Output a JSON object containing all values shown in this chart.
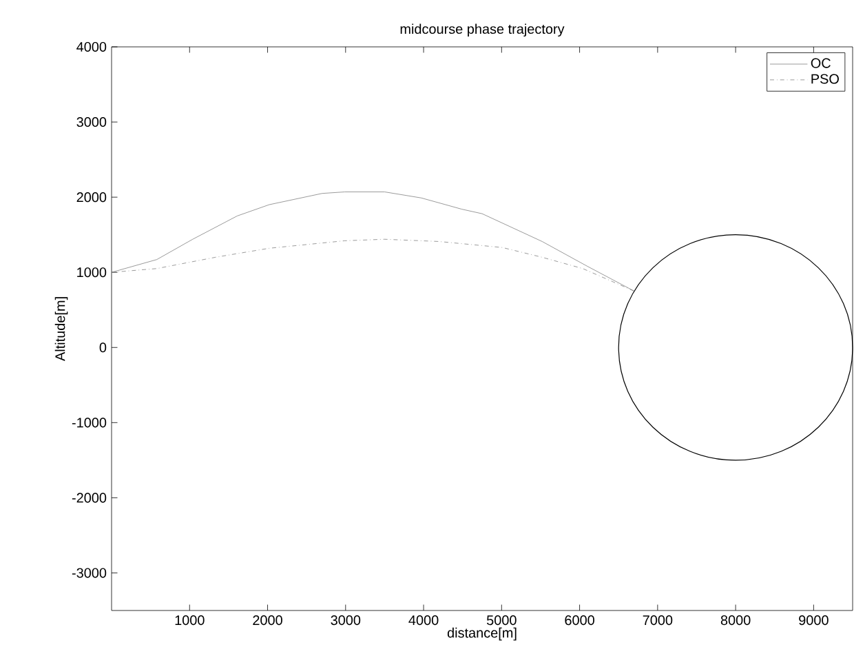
{
  "chart_data": {
    "type": "line",
    "title": "midcourse phase trajectory",
    "xlabel": "distance[m]",
    "ylabel": "Altitude[m]",
    "xlim": [
      0,
      9500
    ],
    "ylim": [
      -3500,
      4000
    ],
    "xticks": [
      1000,
      2000,
      3000,
      4000,
      5000,
      6000,
      7000,
      8000,
      9000
    ],
    "yticks": [
      -3000,
      -2000,
      -1000,
      0,
      1000,
      2000,
      3000,
      4000
    ],
    "legend": "top right",
    "marker": "none",
    "series": [
      {
        "name": "OC",
        "color": "#808080",
        "line_style": "solid",
        "x": [
          0,
          580,
          1040,
          1610,
          2020,
          2700,
          2990,
          3500,
          3970,
          4490,
          4750,
          5520,
          6100,
          6700
        ],
        "values": [
          1000,
          1170,
          1440,
          1750,
          1900,
          2050,
          2070,
          2070,
          1990,
          1840,
          1780,
          1410,
          1080,
          750
        ]
      },
      {
        "name": "PSO",
        "color": "#808080",
        "line_style": "dashdot",
        "x": [
          0,
          580,
          1330,
          2020,
          2990,
          3500,
          4200,
          5010,
          5520,
          6040,
          6700
        ],
        "values": [
          1000,
          1050,
          1200,
          1320,
          1420,
          1440,
          1410,
          1330,
          1200,
          1050,
          750
        ]
      }
    ]
  }
}
